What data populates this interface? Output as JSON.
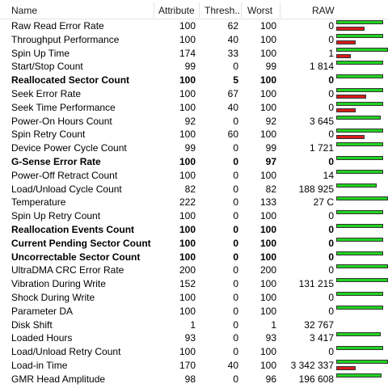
{
  "columns": {
    "name": "Name",
    "attribute": "Attribute",
    "threshold": "Thresh...",
    "worst": "Worst",
    "raw": "RAW"
  },
  "colors": {
    "green_bar": "#21d321",
    "red_bar": "#d81c1c"
  },
  "rows": [
    {
      "name": "Raw Read Error Rate",
      "attribute": "100",
      "threshold": "62",
      "worst": "100",
      "raw": "0",
      "bold": false,
      "green": 0.9,
      "red": 0.55
    },
    {
      "name": "Throughput Performance",
      "attribute": "100",
      "threshold": "40",
      "worst": "100",
      "raw": "0",
      "bold": false,
      "green": 0.9,
      "red": 0.38
    },
    {
      "name": "Spin Up Time",
      "attribute": "174",
      "threshold": "33",
      "worst": "100",
      "raw": "1",
      "bold": false,
      "green": 1.0,
      "red": 0.28
    },
    {
      "name": "Start/Stop Count",
      "attribute": "99",
      "threshold": "0",
      "worst": "99",
      "raw": "1 814",
      "bold": false,
      "green": 0.9,
      "red": 0
    },
    {
      "name": "Reallocated Sector Count",
      "attribute": "100",
      "threshold": "5",
      "worst": "100",
      "raw": "0",
      "bold": true,
      "green": 0.9,
      "red": 0
    },
    {
      "name": "Seek Error Rate",
      "attribute": "100",
      "threshold": "67",
      "worst": "100",
      "raw": "0",
      "bold": false,
      "green": 0.9,
      "red": 0.58
    },
    {
      "name": "Seek Time Performance",
      "attribute": "100",
      "threshold": "40",
      "worst": "100",
      "raw": "0",
      "bold": false,
      "green": 0.9,
      "red": 0.38
    },
    {
      "name": "Power-On Hours Count",
      "attribute": "92",
      "threshold": "0",
      "worst": "92",
      "raw": "3 645",
      "bold": false,
      "green": 0.86,
      "red": 0
    },
    {
      "name": "Spin Retry Count",
      "attribute": "100",
      "threshold": "60",
      "worst": "100",
      "raw": "0",
      "bold": false,
      "green": 0.9,
      "red": 0.54
    },
    {
      "name": "Device Power Cycle Count",
      "attribute": "99",
      "threshold": "0",
      "worst": "99",
      "raw": "1 721",
      "bold": false,
      "green": 0.9,
      "red": 0
    },
    {
      "name": "G-Sense Error Rate",
      "attribute": "100",
      "threshold": "0",
      "worst": "97",
      "raw": "0",
      "bold": true,
      "green": 0.9,
      "red": 0
    },
    {
      "name": "Power-Off Retract Count",
      "attribute": "100",
      "threshold": "0",
      "worst": "100",
      "raw": "14",
      "bold": false,
      "green": 0.9,
      "red": 0
    },
    {
      "name": "Load/Unload Cycle Count",
      "attribute": "82",
      "threshold": "0",
      "worst": "82",
      "raw": "188 925",
      "bold": false,
      "green": 0.78,
      "red": 0
    },
    {
      "name": "Temperature",
      "attribute": "222",
      "threshold": "0",
      "worst": "133",
      "raw": "27 C",
      "bold": false,
      "green": 1.0,
      "red": 0
    },
    {
      "name": "Spin Up Retry Count",
      "attribute": "100",
      "threshold": "0",
      "worst": "100",
      "raw": "0",
      "bold": false,
      "green": 0.9,
      "red": 0
    },
    {
      "name": "Reallocation Events Count",
      "attribute": "100",
      "threshold": "0",
      "worst": "100",
      "raw": "0",
      "bold": true,
      "green": 0.9,
      "red": 0
    },
    {
      "name": "Current Pending Sector Count",
      "attribute": "100",
      "threshold": "0",
      "worst": "100",
      "raw": "0",
      "bold": true,
      "green": 0.9,
      "red": 0
    },
    {
      "name": "Uncorrectable Sector Count",
      "attribute": "100",
      "threshold": "0",
      "worst": "100",
      "raw": "0",
      "bold": true,
      "green": 0.9,
      "red": 0
    },
    {
      "name": "UltraDMA CRC Error Rate",
      "attribute": "200",
      "threshold": "0",
      "worst": "200",
      "raw": "0",
      "bold": false,
      "green": 1.0,
      "red": 0
    },
    {
      "name": "Vibration During Write",
      "attribute": "152",
      "threshold": "0",
      "worst": "100",
      "raw": "131 215",
      "bold": false,
      "green": 1.0,
      "red": 0
    },
    {
      "name": "Shock During Write",
      "attribute": "100",
      "threshold": "0",
      "worst": "100",
      "raw": "0",
      "bold": false,
      "green": 0.9,
      "red": 0
    },
    {
      "name": "Parameter DA",
      "attribute": "100",
      "threshold": "0",
      "worst": "100",
      "raw": "0",
      "bold": false,
      "green": 0.9,
      "red": 0
    },
    {
      "name": "Disk Shift",
      "attribute": "1",
      "threshold": "0",
      "worst": "1",
      "raw": "32 767",
      "bold": false,
      "green": 0,
      "red": 0
    },
    {
      "name": "Loaded Hours",
      "attribute": "93",
      "threshold": "0",
      "worst": "93",
      "raw": "3 417",
      "bold": false,
      "green": 0.86,
      "red": 0
    },
    {
      "name": "Load/Unload Retry Count",
      "attribute": "100",
      "threshold": "0",
      "worst": "100",
      "raw": "0",
      "bold": false,
      "green": 0.9,
      "red": 0
    },
    {
      "name": "Load-in Time",
      "attribute": "170",
      "threshold": "40",
      "worst": "100",
      "raw": "3 342 337",
      "bold": false,
      "green": 1.0,
      "red": 0.38
    },
    {
      "name": "GMR Head Amplitude",
      "attribute": "98",
      "threshold": "0",
      "worst": "96",
      "raw": "196 608",
      "bold": false,
      "green": 0.88,
      "red": 0
    }
  ]
}
